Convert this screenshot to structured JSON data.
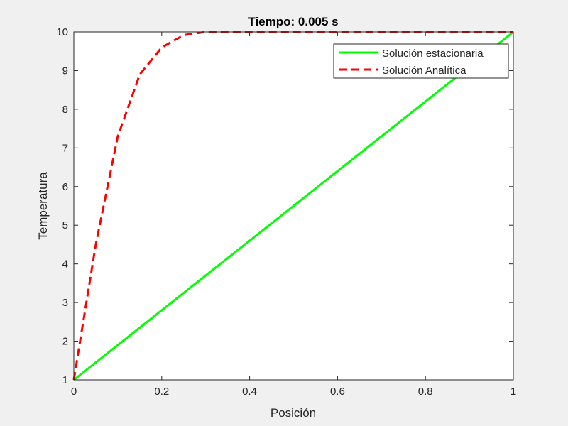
{
  "chart_data": {
    "type": "line",
    "title": "Tiempo: 0.005 s",
    "xlabel": "Posición",
    "ylabel": "Temperatura",
    "xlim": [
      0,
      1
    ],
    "ylim": [
      1,
      10
    ],
    "xticks": [
      0,
      0.2,
      0.4,
      0.6,
      0.8,
      1
    ],
    "xtick_labels": [
      "0",
      "0.2",
      "0.4",
      "0.6",
      "0.8",
      "1"
    ],
    "yticks": [
      1,
      2,
      3,
      4,
      5,
      6,
      7,
      8,
      9,
      10
    ],
    "ytick_labels": [
      "1",
      "2",
      "3",
      "4",
      "5",
      "6",
      "7",
      "8",
      "9",
      "10"
    ],
    "grid": false,
    "legend_position": "top-right",
    "series": [
      {
        "name": "Solución estacionaria",
        "color": "#00ff00",
        "style": "solid",
        "x": [
          0,
          1
        ],
        "y": [
          1,
          10
        ]
      },
      {
        "name": "Solución Analítica",
        "color": "#ff0000",
        "style": "dashed",
        "x": [
          0,
          0.05,
          0.1,
          0.15,
          0.2,
          0.25,
          0.3,
          0.4,
          0.5,
          0.6,
          0.7,
          0.8,
          0.9,
          1.0
        ],
        "y": [
          1,
          4.5,
          7.3,
          8.9,
          9.6,
          9.92,
          10,
          10,
          10,
          10,
          10,
          10,
          10,
          10
        ]
      }
    ]
  }
}
